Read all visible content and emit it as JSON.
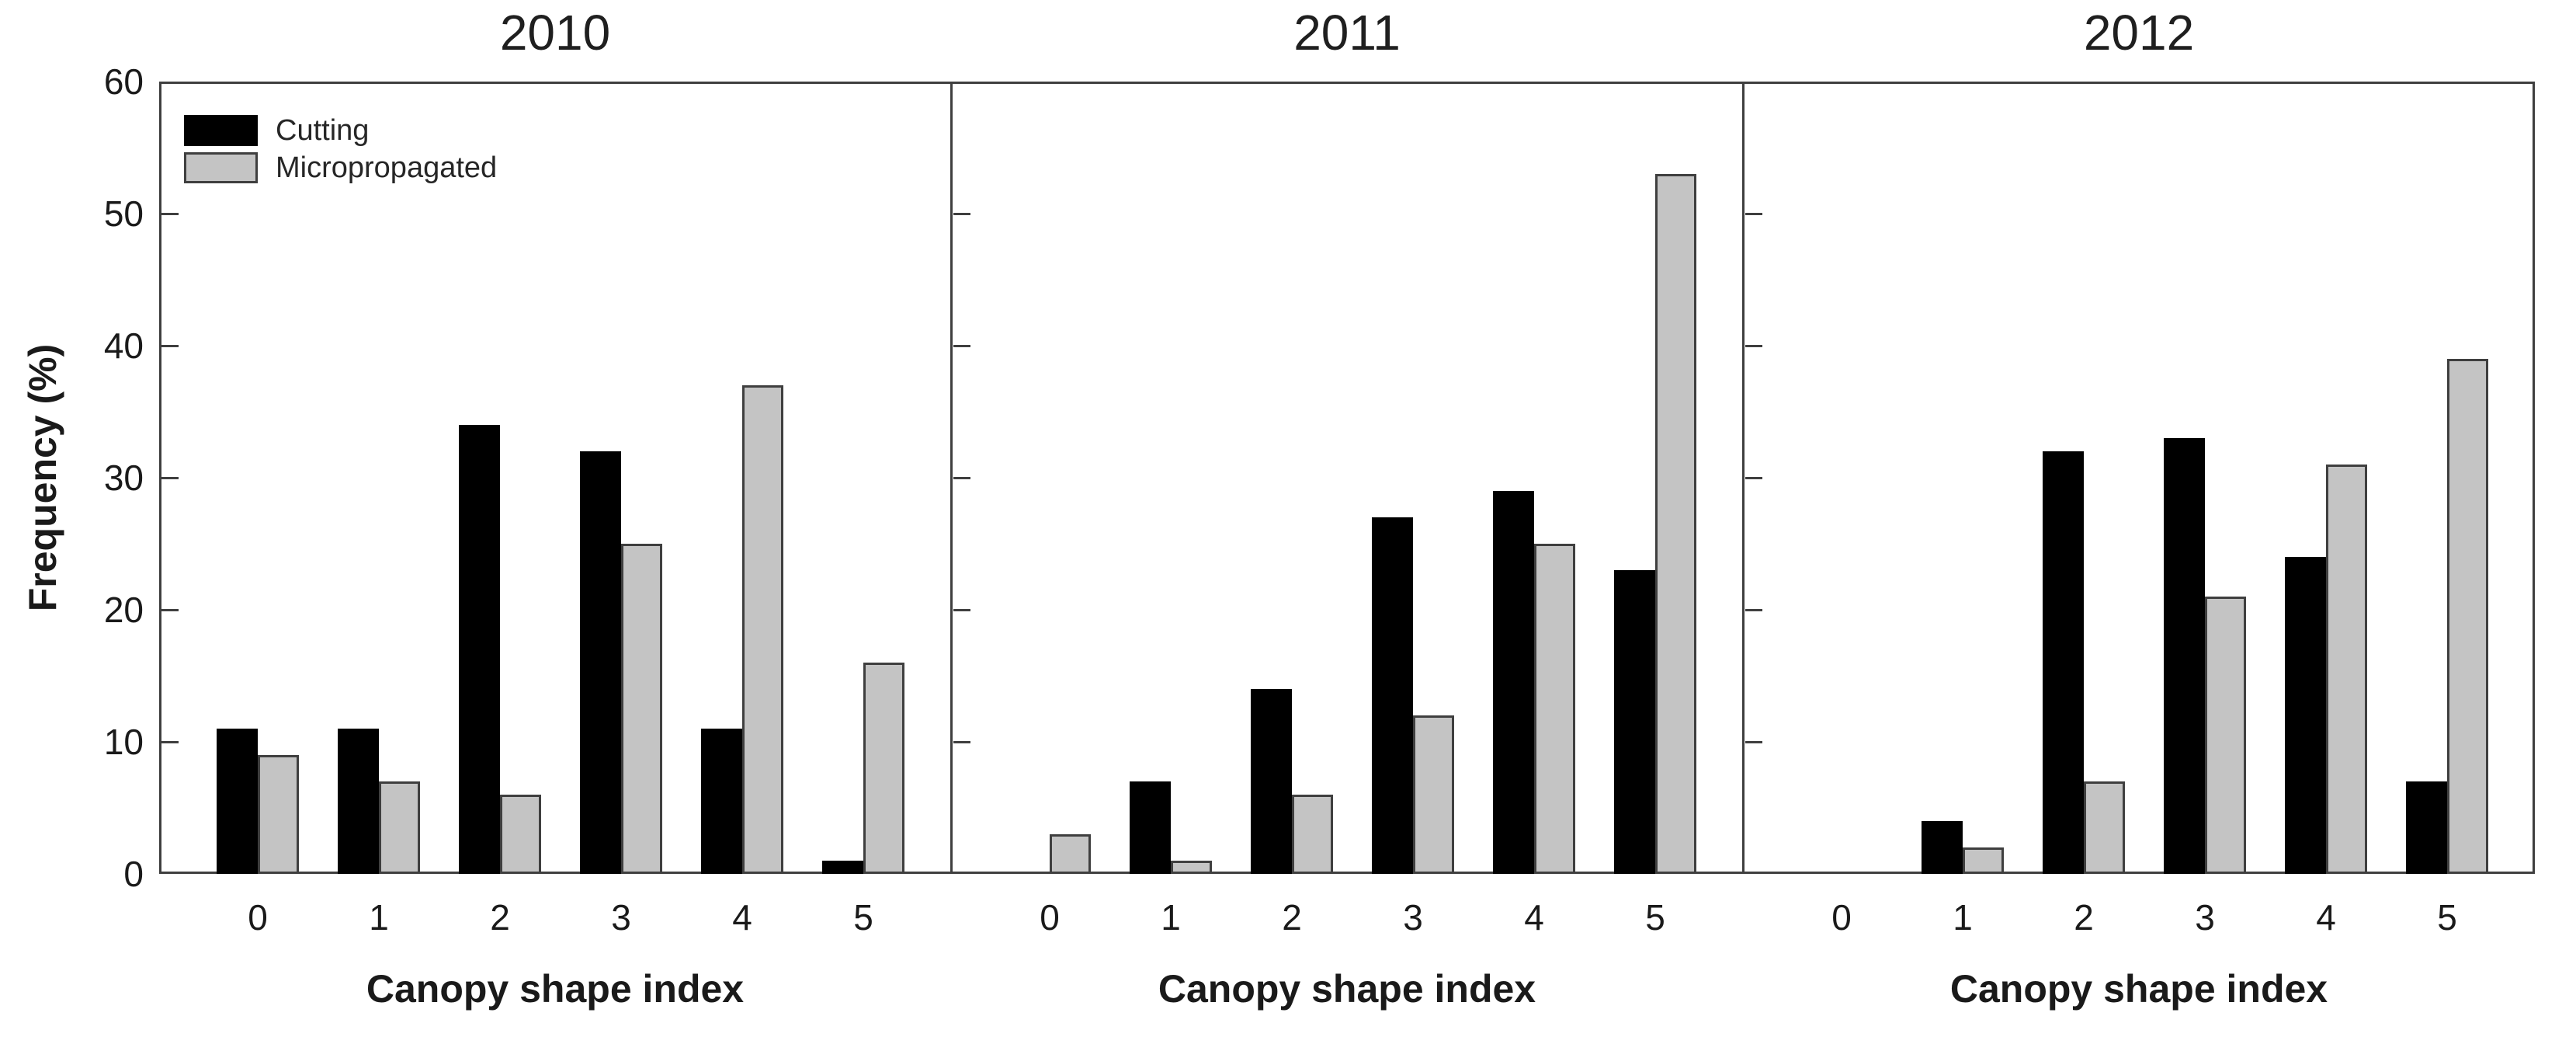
{
  "chart_data": {
    "type": "bar",
    "grouped": true,
    "categories": [
      "0",
      "1",
      "2",
      "3",
      "4",
      "5"
    ],
    "xlabel": "Canopy shape index",
    "ylabel": "Frequency (%)",
    "ylim": [
      0,
      60
    ],
    "yticks": [
      0,
      10,
      20,
      30,
      40,
      50,
      60
    ],
    "grid": false,
    "legend_position": "top-left of first panel",
    "legend": [
      {
        "name": "Cutting",
        "color": "#000000"
      },
      {
        "name": "Micropropagated",
        "color": "#c4c4c4"
      }
    ],
    "panels": [
      {
        "title": "2010",
        "series": [
          {
            "name": "Cutting",
            "values": [
              11,
              11,
              34,
              32,
              11,
              1
            ]
          },
          {
            "name": "Micropropagated",
            "values": [
              9,
              7,
              6,
              25,
              37,
              16
            ]
          }
        ]
      },
      {
        "title": "2011",
        "series": [
          {
            "name": "Cutting",
            "values": [
              0,
              7,
              14,
              27,
              29,
              23
            ]
          },
          {
            "name": "Micropropagated",
            "values": [
              3,
              1,
              6,
              12,
              25,
              53
            ]
          }
        ]
      },
      {
        "title": "2012",
        "series": [
          {
            "name": "Cutting",
            "values": [
              0,
              4,
              32,
              33,
              24,
              7
            ]
          },
          {
            "name": "Micropropagated",
            "values": [
              0,
              2,
              7,
              21,
              31,
              39
            ]
          }
        ]
      }
    ],
    "colors": {
      "cutting_fill": "#000000",
      "micropropagated_fill": "#c4c4c4",
      "bar_edge": "#3f3f3f",
      "spine": "#3f3f3f",
      "text": "#1a1a1a",
      "background": "#ffffff"
    }
  }
}
